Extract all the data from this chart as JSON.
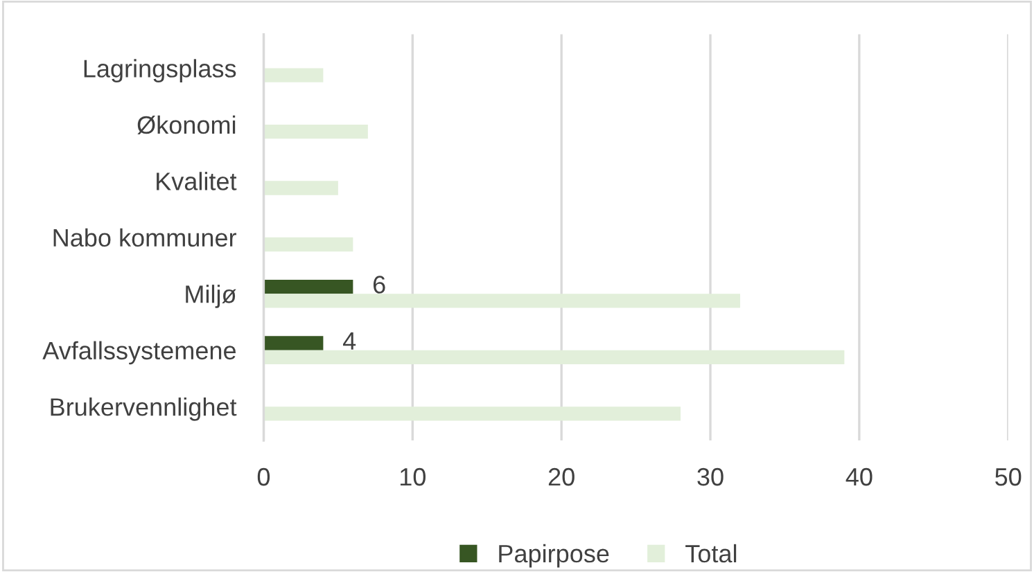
{
  "chart_data": {
    "type": "bar",
    "orientation": "horizontal",
    "categories": [
      "Lagringsplass",
      "Økonomi",
      "Kvalitet",
      "Nabo kommuner",
      "Miljø",
      "Avfallssystemene",
      "Brukervennlighet"
    ],
    "series": [
      {
        "name": "Papirpose",
        "color": "#375623",
        "values": [
          null,
          null,
          null,
          null,
          6,
          4,
          null
        ],
        "value_labels": [
          null,
          null,
          null,
          null,
          "6",
          "4",
          null
        ]
      },
      {
        "name": "Total",
        "color": "#e2efda",
        "values": [
          4,
          7,
          5,
          6,
          32,
          39,
          28
        ]
      }
    ],
    "xlim": [
      0,
      50
    ],
    "xticks": [
      0,
      10,
      20,
      30,
      40,
      50
    ],
    "grid": "x",
    "legend": "bottom"
  }
}
